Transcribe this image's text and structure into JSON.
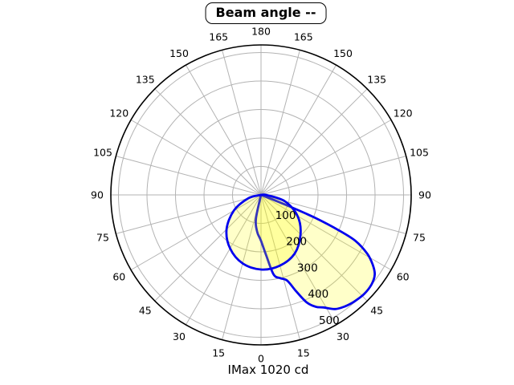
{
  "window": {
    "title": "Beam angle --",
    "footer": "IMax 1020 cd"
  },
  "chart_data": {
    "type": "polar",
    "title": "Beam angle --",
    "footer_label": "IMax 1020 cd",
    "imax_value_cd": 1020,
    "angle_unit": "deg",
    "angle_zero_position": "bottom",
    "angles_mirrored_both_sides": true,
    "angle_ticks": [
      0,
      15,
      30,
      45,
      60,
      75,
      90,
      105,
      120,
      135,
      150,
      165,
      180
    ],
    "angle_grid_step_deg": 15,
    "r_ticks": [
      100,
      200,
      300,
      400,
      500
    ],
    "r_tick_label_angle_deg": 22.5,
    "r_gridline_max": 500,
    "outer_ring_value": 527,
    "grid": true,
    "legend": "none",
    "colors": {
      "curve": "#0000ee",
      "lobe_fill": "rgba(255,255,0,0.21)",
      "grid": "#b3b3b3",
      "outer_ring": "#000000",
      "text": "#000000",
      "background": "#ffffff"
    },
    "series": [
      {
        "name": "main-beam-lobe",
        "description": "large lobe aimed about 45 deg right of nadir, peak ~500",
        "points_deg_value": [
          [
            -16,
            0
          ],
          [
            -12,
            85
          ],
          [
            -6,
            130
          ],
          [
            0,
            161
          ],
          [
            5,
            215
          ],
          [
            9,
            283
          ],
          [
            13,
            300
          ],
          [
            17,
            315
          ],
          [
            20,
            360
          ],
          [
            23,
            410
          ],
          [
            26,
            437
          ],
          [
            29,
            452
          ],
          [
            33,
            478
          ],
          [
            37,
            490
          ],
          [
            41,
            497
          ],
          [
            46,
            502
          ],
          [
            51,
            499
          ],
          [
            55,
            487
          ],
          [
            58,
            462
          ],
          [
            61,
            426
          ],
          [
            64,
            369
          ],
          [
            65.5,
            300
          ],
          [
            67,
            205
          ],
          [
            68,
            105
          ],
          [
            69,
            0
          ]
        ]
      },
      {
        "name": "secondary-lobe",
        "description": "round lobe aimed near nadir, peak ~262",
        "points_deg_value": [
          [
            -85,
            0
          ],
          [
            -75,
            46
          ],
          [
            -60,
            110
          ],
          [
            -45,
            171
          ],
          [
            -30,
            217
          ],
          [
            -15,
            249
          ],
          [
            0,
            262
          ],
          [
            15,
            257
          ],
          [
            30,
            237
          ],
          [
            45,
            196
          ],
          [
            60,
            148
          ],
          [
            75,
            87
          ],
          [
            88,
            20
          ],
          [
            94,
            0
          ]
        ]
      }
    ]
  }
}
